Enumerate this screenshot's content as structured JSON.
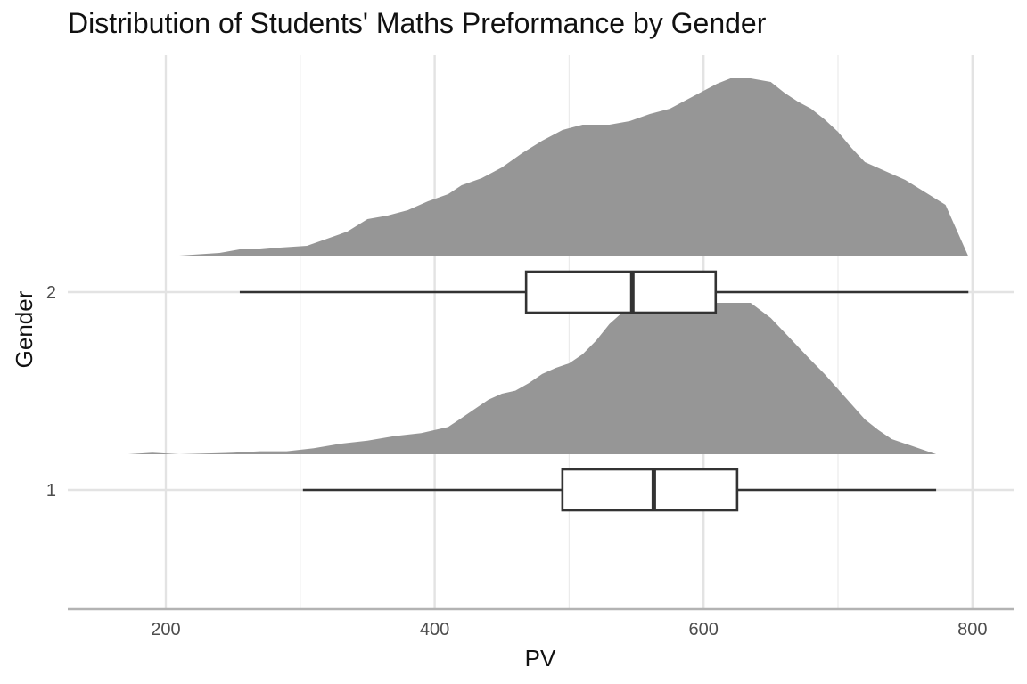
{
  "chart_data": {
    "type": "ridgeline-boxplot",
    "title": "Distribution of Students' Maths Preformance by Gender",
    "xlabel": "PV",
    "ylabel": "Gender",
    "xlim": [
      128,
      810
    ],
    "x_ticks": [
      200,
      400,
      600,
      800
    ],
    "categories": [
      "1",
      "2"
    ],
    "grid": true,
    "fill_color": "#969696",
    "box_outline_color": "#333333",
    "series": [
      {
        "category": "1",
        "boxplot": {
          "lower_whisker": 302,
          "q1": 495,
          "median": 563,
          "q3": 625,
          "upper_whisker": 773
        },
        "density_relative": [
          [
            172,
            0.0
          ],
          [
            190,
            0.01
          ],
          [
            210,
            0.0
          ],
          [
            250,
            0.01
          ],
          [
            270,
            0.02
          ],
          [
            290,
            0.02
          ],
          [
            310,
            0.04
          ],
          [
            330,
            0.07
          ],
          [
            350,
            0.09
          ],
          [
            370,
            0.12
          ],
          [
            390,
            0.14
          ],
          [
            410,
            0.18
          ],
          [
            420,
            0.24
          ],
          [
            430,
            0.3
          ],
          [
            440,
            0.36
          ],
          [
            450,
            0.4
          ],
          [
            460,
            0.42
          ],
          [
            470,
            0.47
          ],
          [
            480,
            0.53
          ],
          [
            490,
            0.57
          ],
          [
            500,
            0.6
          ],
          [
            510,
            0.66
          ],
          [
            520,
            0.75
          ],
          [
            530,
            0.86
          ],
          [
            540,
            0.94
          ],
          [
            555,
            0.99
          ],
          [
            570,
            1.0
          ],
          [
            590,
            1.0
          ],
          [
            610,
            1.0
          ],
          [
            620,
            1.0
          ],
          [
            635,
            1.0
          ],
          [
            650,
            0.9
          ],
          [
            665,
            0.76
          ],
          [
            680,
            0.62
          ],
          [
            690,
            0.53
          ],
          [
            700,
            0.43
          ],
          [
            710,
            0.33
          ],
          [
            720,
            0.23
          ],
          [
            730,
            0.16
          ],
          [
            740,
            0.1
          ],
          [
            750,
            0.07
          ],
          [
            760,
            0.04
          ],
          [
            773,
            0.0
          ]
        ]
      },
      {
        "category": "2",
        "boxplot": {
          "lower_whisker": 255,
          "q1": 468,
          "median": 547,
          "q3": 609,
          "upper_whisker": 797
        },
        "density_relative": [
          [
            157,
            0.0
          ],
          [
            180,
            0.0
          ],
          [
            200,
            0.0
          ],
          [
            220,
            0.01
          ],
          [
            240,
            0.02
          ],
          [
            255,
            0.04
          ],
          [
            270,
            0.04
          ],
          [
            285,
            0.05
          ],
          [
            305,
            0.06
          ],
          [
            320,
            0.1
          ],
          [
            335,
            0.14
          ],
          [
            350,
            0.21
          ],
          [
            365,
            0.23
          ],
          [
            380,
            0.26
          ],
          [
            395,
            0.31
          ],
          [
            410,
            0.35
          ],
          [
            420,
            0.4
          ],
          [
            435,
            0.44
          ],
          [
            450,
            0.5
          ],
          [
            465,
            0.58
          ],
          [
            480,
            0.65
          ],
          [
            495,
            0.71
          ],
          [
            510,
            0.74
          ],
          [
            530,
            0.74
          ],
          [
            545,
            0.76
          ],
          [
            560,
            0.8
          ],
          [
            575,
            0.83
          ],
          [
            590,
            0.89
          ],
          [
            600,
            0.93
          ],
          [
            610,
            0.97
          ],
          [
            620,
            1.0
          ],
          [
            635,
            1.0
          ],
          [
            650,
            0.98
          ],
          [
            660,
            0.92
          ],
          [
            670,
            0.87
          ],
          [
            680,
            0.83
          ],
          [
            690,
            0.77
          ],
          [
            700,
            0.7
          ],
          [
            710,
            0.61
          ],
          [
            720,
            0.53
          ],
          [
            735,
            0.48
          ],
          [
            750,
            0.43
          ],
          [
            765,
            0.36
          ],
          [
            780,
            0.29
          ],
          [
            797,
            0.0
          ]
        ]
      }
    ]
  }
}
